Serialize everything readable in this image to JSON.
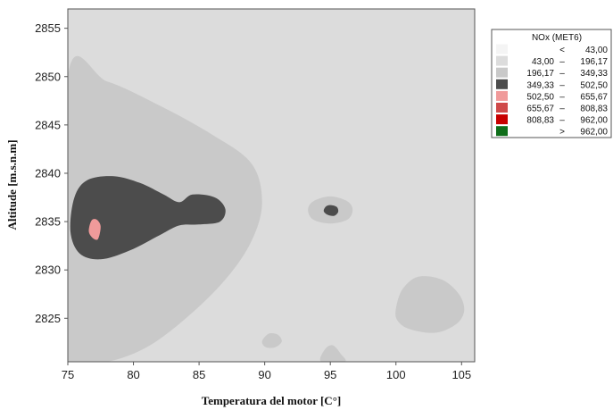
{
  "chart_data": {
    "type": "contour",
    "xlabel": "Temperatura del motor [C°]",
    "ylabel": "Altitude [m.s.n.m]",
    "xlim": [
      75,
      106
    ],
    "ylim": [
      2820.5,
      2857
    ],
    "x_ticks": [
      "75",
      "80",
      "85",
      "90",
      "95",
      "100",
      "105"
    ],
    "y_ticks": [
      "2825",
      "2830",
      "2835",
      "2840",
      "2845",
      "2850",
      "2855"
    ],
    "legend_title": "NOx (MET6)",
    "legend_position": "top-right",
    "levels": [
      {
        "op": "<",
        "low": "",
        "high": "43,00",
        "color": "#f4f4f4"
      },
      {
        "op": "–",
        "low": "43,00",
        "high": "196,17",
        "color": "#dcdcdc"
      },
      {
        "op": "–",
        "low": "196,17",
        "high": "349,33",
        "color": "#c9c9c9"
      },
      {
        "op": "–",
        "low": "349,33",
        "high": "502,50",
        "color": "#4c4c4c"
      },
      {
        "op": "–",
        "low": "502,50",
        "high": "655,67",
        "color": "#f09a9a"
      },
      {
        "op": "–",
        "low": "655,67",
        "high": "808,83",
        "color": "#cf4a4a"
      },
      {
        "op": "–",
        "low": "808,83",
        "high": "962,00",
        "color": "#c80000"
      },
      {
        "op": ">",
        "low": "",
        "high": "962,00",
        "color": "#0f6e1a"
      }
    ],
    "regions": [
      {
        "level": 2,
        "name": "left-lobe",
        "points": [
          [
            75,
            2850
          ],
          [
            78,
            2849.5
          ],
          [
            82,
            2847
          ],
          [
            86,
            2844
          ],
          [
            89,
            2841
          ],
          [
            89.8,
            2837
          ],
          [
            89,
            2833
          ],
          [
            87,
            2829
          ],
          [
            84,
            2825
          ],
          [
            81,
            2822
          ],
          [
            78,
            2820.5
          ],
          [
            75,
            2820.5
          ]
        ]
      },
      {
        "level": 2,
        "name": "spot-95-2836",
        "points": [
          [
            93.3,
            2836.2
          ],
          [
            93.7,
            2837.1
          ],
          [
            95,
            2837.6
          ],
          [
            96.3,
            2837.1
          ],
          [
            96.7,
            2836.2
          ],
          [
            96.3,
            2835.2
          ],
          [
            95,
            2834.8
          ],
          [
            93.7,
            2835.2
          ]
        ]
      },
      {
        "level": 2,
        "name": "right-patch",
        "points": [
          [
            100,
            2826
          ],
          [
            100.5,
            2828
          ],
          [
            101.7,
            2829.3
          ],
          [
            103.5,
            2829
          ],
          [
            104.8,
            2827.5
          ],
          [
            105.2,
            2825.8
          ],
          [
            104.6,
            2824.4
          ],
          [
            103,
            2823.5
          ],
          [
            101,
            2823.9
          ],
          [
            100.1,
            2824.8
          ]
        ]
      },
      {
        "level": 2,
        "name": "spot-90-2822",
        "points": [
          [
            89.8,
            2822.6
          ],
          [
            90.3,
            2823.4
          ],
          [
            91,
            2823.3
          ],
          [
            91.3,
            2822.6
          ],
          [
            90.8,
            2822.0
          ],
          [
            90.1,
            2822.0
          ]
        ]
      },
      {
        "level": 2,
        "name": "spot-95-2820",
        "points": [
          [
            94.3,
            2820.5
          ],
          [
            94.6,
            2821.8
          ],
          [
            95.2,
            2822.2
          ],
          [
            95.8,
            2821.3
          ],
          [
            96.1,
            2820.5
          ]
        ]
      },
      {
        "level": 3,
        "name": "dark-core",
        "points": [
          [
            75.2,
            2834
          ],
          [
            75.5,
            2837.5
          ],
          [
            76.5,
            2839.3
          ],
          [
            78.5,
            2839.7
          ],
          [
            80.5,
            2839
          ],
          [
            82.3,
            2837.8
          ],
          [
            83.5,
            2837
          ],
          [
            84.5,
            2837.8
          ],
          [
            86.2,
            2837.5
          ],
          [
            87,
            2836.3
          ],
          [
            86.6,
            2835
          ],
          [
            85,
            2834.7
          ],
          [
            83.5,
            2834.6
          ],
          [
            82,
            2833.6
          ],
          [
            79.7,
            2832
          ],
          [
            77.5,
            2831.1
          ],
          [
            75.9,
            2831.7
          ]
        ]
      },
      {
        "level": 3,
        "name": "dark-spot-95",
        "points": [
          [
            94.5,
            2836.1
          ],
          [
            94.7,
            2836.6
          ],
          [
            95.1,
            2836.7
          ],
          [
            95.5,
            2836.5
          ],
          [
            95.6,
            2836
          ],
          [
            95.3,
            2835.6
          ],
          [
            94.8,
            2835.7
          ]
        ]
      },
      {
        "level": 4,
        "name": "pink-spot",
        "points": [
          [
            76.6,
            2834
          ],
          [
            76.8,
            2835.1
          ],
          [
            77.2,
            2835.2
          ],
          [
            77.5,
            2834.5
          ],
          [
            77.3,
            2833.2
          ],
          [
            76.9,
            2833.3
          ]
        ]
      }
    ]
  }
}
